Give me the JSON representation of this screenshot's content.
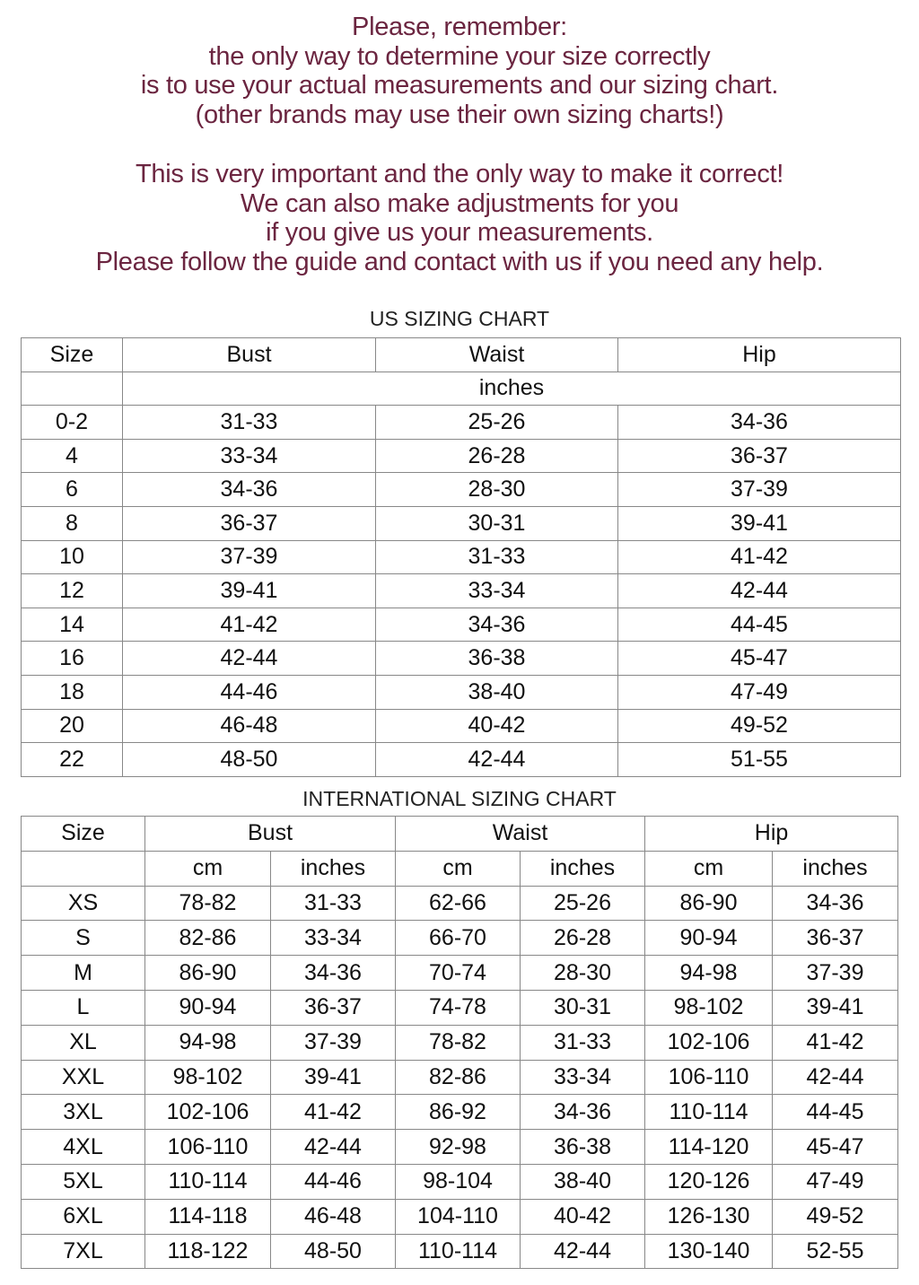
{
  "notice": {
    "lines_1": [
      "Please, remember:",
      "the only way to determine your size correctly",
      "is to use your actual measurements and our sizing chart.",
      "(other brands may use their own sizing charts!)"
    ],
    "lines_2": [
      "This is very important and the only way to make it correct!",
      "We can also make adjustments for you",
      "if you give us your measurements.",
      "Please follow the guide and contact with us if you need any help."
    ],
    "color": "#6b2540"
  },
  "us_chart": {
    "title": "US SIZING CHART",
    "headers": [
      "Size",
      "Bust",
      "Waist",
      "Hip"
    ],
    "unit": "inches",
    "rows": [
      [
        "0-2",
        "31-33",
        "25-26",
        "34-36"
      ],
      [
        "4",
        "33-34",
        "26-28",
        "36-37"
      ],
      [
        "6",
        "34-36",
        "28-30",
        "37-39"
      ],
      [
        "8",
        "36-37",
        "30-31",
        "39-41"
      ],
      [
        "10",
        "37-39",
        "31-33",
        "41-42"
      ],
      [
        "12",
        "39-41",
        "33-34",
        "42-44"
      ],
      [
        "14",
        "41-42",
        "34-36",
        "44-45"
      ],
      [
        "16",
        "42-44",
        "36-38",
        "45-47"
      ],
      [
        "18",
        "44-46",
        "38-40",
        "47-49"
      ],
      [
        "20",
        "46-48",
        "40-42",
        "49-52"
      ],
      [
        "22",
        "48-50",
        "42-44",
        "51-55"
      ]
    ]
  },
  "intl_chart": {
    "title": "INTERNATIONAL SIZING CHART",
    "headers": [
      "Size",
      "Bust",
      "Waist",
      "Hip"
    ],
    "subheaders": [
      "cm",
      "inches",
      "cm",
      "inches",
      "cm",
      "inches"
    ],
    "rows": [
      [
        "XS",
        "78-82",
        "31-33",
        "62-66",
        "25-26",
        "86-90",
        "34-36"
      ],
      [
        "S",
        "82-86",
        "33-34",
        "66-70",
        "26-28",
        "90-94",
        "36-37"
      ],
      [
        "M",
        "86-90",
        "34-36",
        "70-74",
        "28-30",
        "94-98",
        "37-39"
      ],
      [
        "L",
        "90-94",
        "36-37",
        "74-78",
        "30-31",
        "98-102",
        "39-41"
      ],
      [
        "XL",
        "94-98",
        "37-39",
        "78-82",
        "31-33",
        "102-106",
        "41-42"
      ],
      [
        "XXL",
        "98-102",
        "39-41",
        "82-86",
        "33-34",
        "106-110",
        "42-44"
      ],
      [
        "3XL",
        "102-106",
        "41-42",
        "86-92",
        "34-36",
        "110-114",
        "44-45"
      ],
      [
        "4XL",
        "106-110",
        "42-44",
        "92-98",
        "36-38",
        "114-120",
        "45-47"
      ],
      [
        "5XL",
        "110-114",
        "44-46",
        "98-104",
        "38-40",
        "120-126",
        "47-49"
      ],
      [
        "6XL",
        "114-118",
        "46-48",
        "104-110",
        "40-42",
        "126-130",
        "49-52"
      ],
      [
        "7XL",
        "118-122",
        "48-50",
        "110-114",
        "42-44",
        "130-140",
        "52-55"
      ]
    ]
  }
}
